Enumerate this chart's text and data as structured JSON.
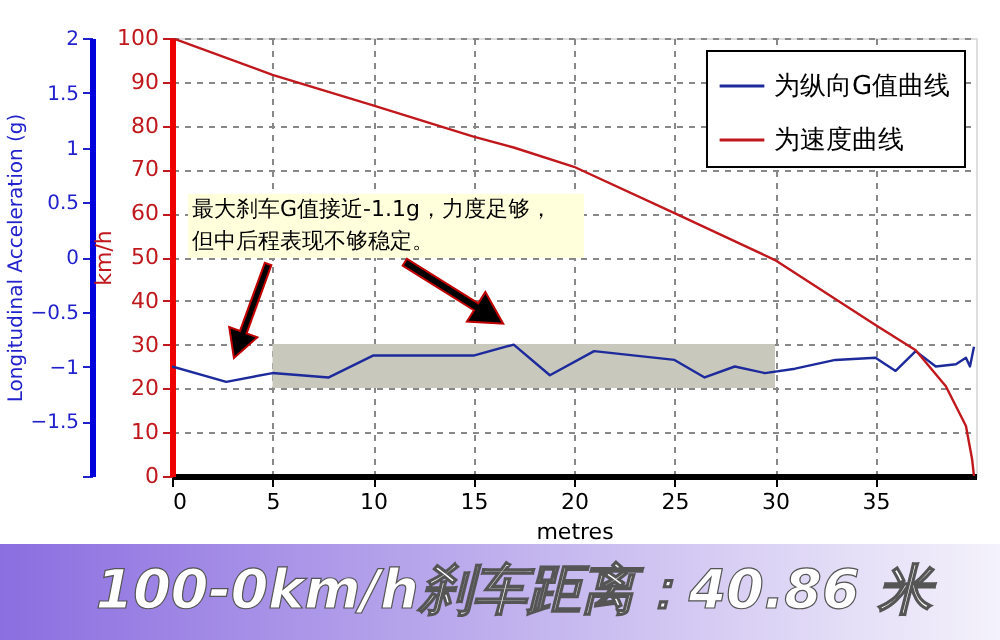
{
  "chart_data": {
    "type": "line",
    "title": "100-0km/h刹车距离：40.86 米",
    "xlabel": "metres",
    "ylabel": "km/h",
    "y2label": "Longitudinal Acceleration (g)",
    "xlim": [
      0,
      40
    ],
    "xticks": [
      0,
      5,
      10,
      15,
      20,
      25,
      30,
      35
    ],
    "ylim": [
      0,
      100
    ],
    "yticks": [
      0,
      10,
      20,
      30,
      40,
      50,
      60,
      70,
      80,
      90,
      100
    ],
    "y2lim": [
      -2,
      2
    ],
    "y2ticks": [
      {
        "value": -2,
        "label": null
      },
      -1.5,
      -1,
      -0.5,
      0,
      0.5,
      1,
      1.5,
      2
    ],
    "grid": true,
    "legend": "top right",
    "marker": "none",
    "line_style": "solid",
    "bands": [
      {
        "axis": "x",
        "from": 5,
        "to": 30,
        "color": "#c8c8bc"
      }
    ],
    "annotations": [
      "最大刹车G值接近-1.1g，力度足够，但中后程表现不够稳定。"
    ],
    "series": [
      {
        "name": "为纵向G值曲线",
        "color": "#1c2a9c",
        "axis": "y2",
        "x": [
          0,
          2.7,
          5,
          7.8,
          10,
          15,
          17,
          18.8,
          21,
          25,
          26.5,
          28,
          29.5,
          31,
          33,
          35,
          36,
          37,
          38,
          39,
          39.5,
          39.7,
          39.9
        ],
        "values": [
          -1.0,
          -1.14,
          -1.06,
          -1.1,
          -0.9,
          -0.9,
          -0.8,
          -1.08,
          -0.86,
          -0.94,
          -1.1,
          -1.0,
          -1.06,
          -1.02,
          -0.94,
          -0.92,
          -1.04,
          -0.86,
          -1.0,
          -0.98,
          -0.92,
          -1.0,
          -0.82
        ]
      },
      {
        "name": "为速度曲线",
        "color": "#c0181c",
        "axis": "y",
        "x": [
          0,
          5,
          10,
          15,
          17,
          20,
          25,
          30,
          35,
          37,
          38.5,
          39.5,
          39.8,
          39.9
        ],
        "values": [
          100,
          91.6,
          84.6,
          77.5,
          75,
          70.6,
          60,
          49.3,
          34.5,
          28.7,
          20.5,
          11.4,
          4,
          0
        ]
      }
    ]
  }
}
